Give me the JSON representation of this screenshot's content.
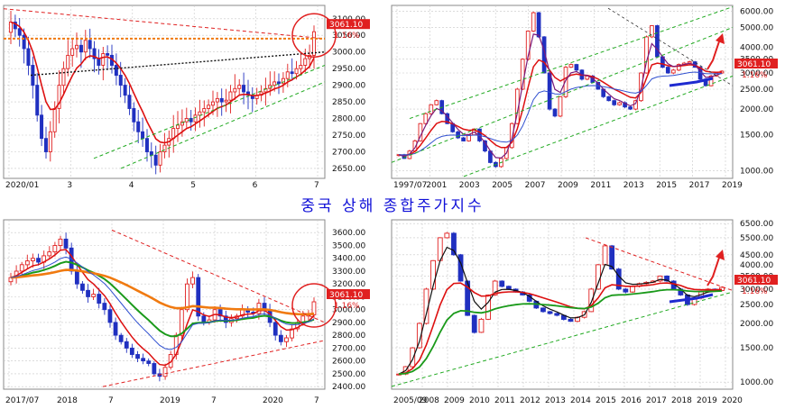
{
  "title": "중국 상해 종합주가지수",
  "colors": {
    "up": "#e02020",
    "down": "#2030c0",
    "ma_red": "#dd1010",
    "ma_green": "#1a9a1a",
    "ma_orange": "#f07a10",
    "ma_blue": "#3050d0",
    "ma_purple": "#7a1a7a",
    "channel_green": "#22aa22",
    "trend_red": "#e02020",
    "label_bg": "#e02020",
    "grid": "#c8c8c8"
  },
  "chart_data": [
    {
      "id": "p1",
      "type": "candlestick",
      "title": "",
      "last_value": "3061.10",
      "change": "1.16%",
      "y_range": [
        2620,
        3140
      ],
      "y_ticks": [
        "3100.00",
        "3050.00",
        "3000.00",
        "2950.00",
        "2900.00",
        "2850.00",
        "2800.00",
        "2750.00",
        "2700.00",
        "2650.00"
      ],
      "x_ticks": [
        "2020/01",
        "3",
        "4",
        "5",
        "6",
        "7"
      ],
      "series": [
        {
          "values": [
            3090,
            3070,
            3050,
            3010,
            2960,
            2900,
            2810,
            2740,
            2700,
            2760,
            2830,
            2900,
            2950,
            2990,
            3010,
            3020,
            3000,
            3035,
            3010,
            2980,
            2960,
            2995,
            2990,
            2960,
            2930,
            2900,
            2870,
            2830,
            2790,
            2760,
            2740,
            2700,
            2690,
            2660,
            2700,
            2720,
            2740,
            2770,
            2780,
            2790,
            2800,
            2790,
            2810,
            2820,
            2830,
            2840,
            2850,
            2860,
            2850,
            2855,
            2880,
            2890,
            2900,
            2880,
            2870,
            2860,
            2870,
            2880,
            2890,
            2900,
            2910,
            2905,
            2920,
            2940,
            2935,
            2950,
            2960,
            2980,
            2990,
            3061
          ]
        }
      ]
    },
    {
      "id": "p2",
      "type": "candlestick",
      "title": "",
      "scale": "log",
      "last_value": "3061.10",
      "change": "1.16%",
      "y_range": [
        920,
        6400
      ],
      "y_ticks": [
        "6000.00",
        "5000.00",
        "4000.00",
        "3500.00",
        "3000.00",
        "2500.00",
        "2000.00",
        "1500.00",
        "1000.00"
      ],
      "x_ticks": [
        "1997/07",
        "2001",
        "2003",
        "2005",
        "2007",
        "2009",
        "2011",
        "2013",
        "2015",
        "2017",
        "2019"
      ],
      "series": [
        {
          "values": [
            1200,
            1150,
            1250,
            1400,
            1700,
            1900,
            2100,
            2200,
            1900,
            1700,
            1550,
            1450,
            1400,
            1500,
            1600,
            1400,
            1250,
            1100,
            1050,
            1150,
            1300,
            1700,
            2500,
            3500,
            4800,
            5900,
            4500,
            3000,
            2000,
            1850,
            2300,
            3200,
            3300,
            3100,
            2800,
            2900,
            2700,
            2500,
            2300,
            2200,
            2100,
            2150,
            2050,
            2000,
            2200,
            3000,
            4500,
            5100,
            3600,
            3200,
            3000,
            3100,
            3300,
            3350,
            3400,
            3200,
            2800,
            2600,
            2900,
            3000,
            3061
          ]
        }
      ]
    },
    {
      "id": "p3",
      "type": "candlestick",
      "title": "",
      "last_value": "3061.10",
      "change": "1.16%",
      "y_range": [
        2380,
        3700
      ],
      "y_ticks": [
        "3600.00",
        "3500.00",
        "3400.00",
        "3300.00",
        "3200.00",
        "3100.00",
        "3000.00",
        "2900.00",
        "2800.00",
        "2700.00",
        "2600.00",
        "2500.00",
        "2400.00"
      ],
      "x_ticks": [
        "2017/07",
        "2018",
        "7",
        "2019",
        "7",
        "2020",
        "7"
      ],
      "series": [
        {
          "values": [
            3250,
            3300,
            3350,
            3380,
            3400,
            3370,
            3420,
            3450,
            3500,
            3550,
            3480,
            3300,
            3200,
            3150,
            3100,
            3120,
            3050,
            3000,
            2900,
            2800,
            2750,
            2700,
            2650,
            2620,
            2600,
            2580,
            2500,
            2480,
            2550,
            2650,
            2800,
            3000,
            3200,
            3250,
            2950,
            2900,
            2920,
            3000,
            2950,
            2900,
            2930,
            2950,
            3000,
            2980,
            2970,
            3050,
            3000,
            2900,
            2800,
            2750,
            2780,
            2850,
            2900,
            2950,
            2960,
            3061
          ]
        }
      ]
    },
    {
      "id": "p4",
      "type": "candlestick",
      "title": "",
      "scale": "log",
      "last_value": "3061.10",
      "change": "1.16%",
      "y_range": [
        920,
        6800
      ],
      "y_ticks": [
        "6500.00",
        "5500.00",
        "4500.00",
        "4000.00",
        "3500.00",
        "3000.00",
        "2500.00",
        "2000.00",
        "1500.00",
        "1000.00"
      ],
      "x_ticks": [
        "2005/09",
        "2008",
        "2009",
        "2010",
        "2011",
        "2012",
        "2013",
        "2014",
        "2015",
        "2016",
        "2017",
        "2018",
        "2019",
        "2020"
      ],
      "series": [
        {
          "values": [
            1100,
            1200,
            1500,
            2000,
            3000,
            4200,
            5500,
            5800,
            4500,
            3300,
            2200,
            1800,
            2100,
            2800,
            3300,
            3100,
            3000,
            2900,
            2800,
            2600,
            2400,
            2300,
            2250,
            2200,
            2100,
            2050,
            2150,
            2300,
            3000,
            4000,
            5000,
            3800,
            3000,
            2900,
            3100,
            3200,
            3250,
            3300,
            3500,
            3300,
            3000,
            2800,
            2500,
            2700,
            2900,
            3000,
            2950,
            3061
          ]
        }
      ]
    }
  ]
}
